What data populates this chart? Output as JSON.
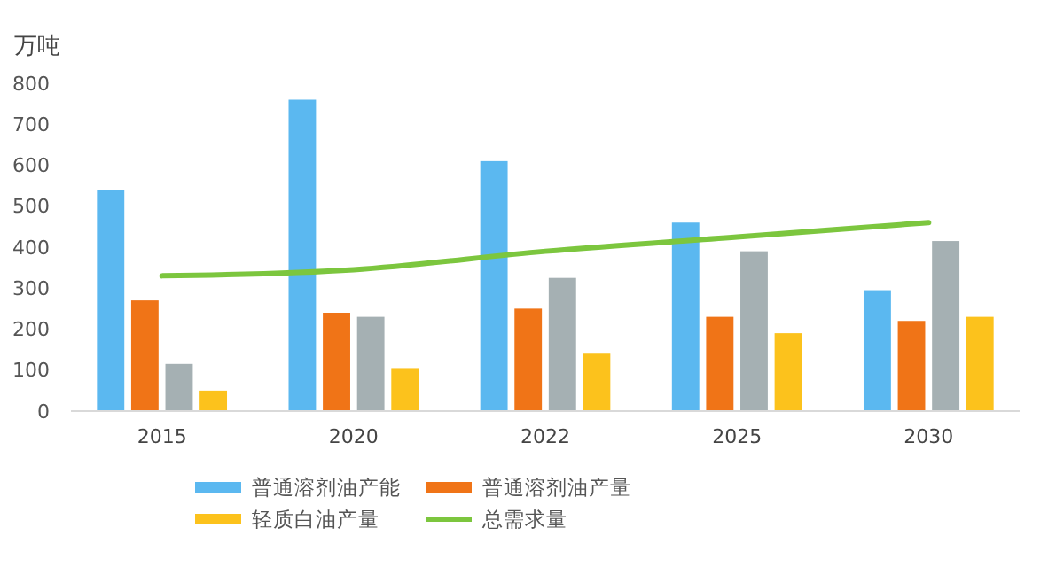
{
  "chart_data": {
    "type": "bar",
    "ylabel": "万吨",
    "categories": [
      "2015",
      "2020",
      "2022",
      "2025",
      "2030"
    ],
    "series": [
      {
        "name": "普通溶剂油产能",
        "color": "#5bb8f0",
        "values": [
          540,
          760,
          610,
          460,
          295
        ]
      },
      {
        "name": "普通溶剂油产量",
        "color": "#f07417",
        "values": [
          270,
          240,
          250,
          230,
          220
        ]
      },
      {
        "color": "#a5b0b3",
        "values": [
          115,
          230,
          325,
          390,
          415
        ]
      },
      {
        "name": "轻质白油产量",
        "color": "#fcc21c",
        "values": [
          50,
          105,
          140,
          190,
          230
        ]
      },
      {
        "name": "总需求量",
        "type": "line",
        "color": "#7cc63e",
        "values": [
          330,
          345,
          390,
          425,
          460
        ]
      }
    ],
    "ylim": [
      0,
      800
    ],
    "yticks": [
      0,
      100,
      200,
      300,
      400,
      500,
      600,
      700,
      800
    ],
    "grid": false,
    "legend": "bottom",
    "marker": "none"
  }
}
